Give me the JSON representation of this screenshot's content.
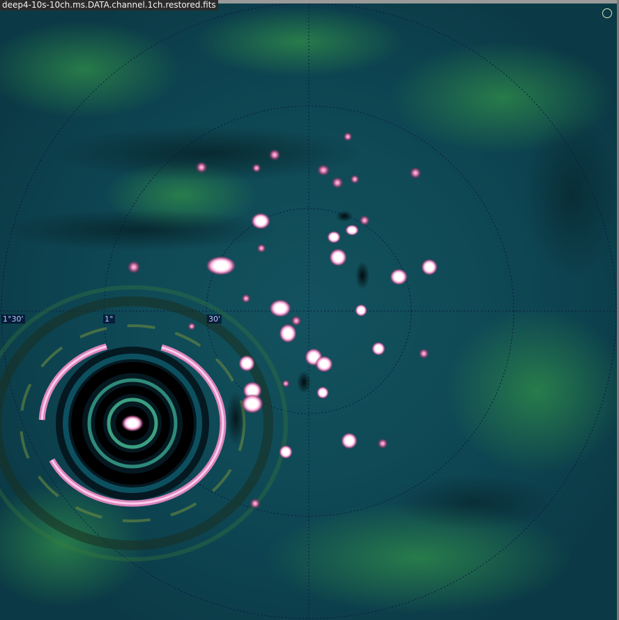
{
  "window": {
    "title": "deep4-10s-10ch.ms.DATA.channel.1ch.restored.fits"
  },
  "axis_labels": {
    "dec_1_30": "1°30'",
    "dec_1": "1°",
    "dec_30": "30'"
  },
  "colors": {
    "background": "#0f4a56",
    "grid": "#0a1840",
    "source_core": "#ffffff",
    "source_halo": "#ff7fc0",
    "ring": "#ff8fd0",
    "beam_marker": "#dfe8c0"
  },
  "icons": {
    "beam": "circle-outline-icon"
  }
}
